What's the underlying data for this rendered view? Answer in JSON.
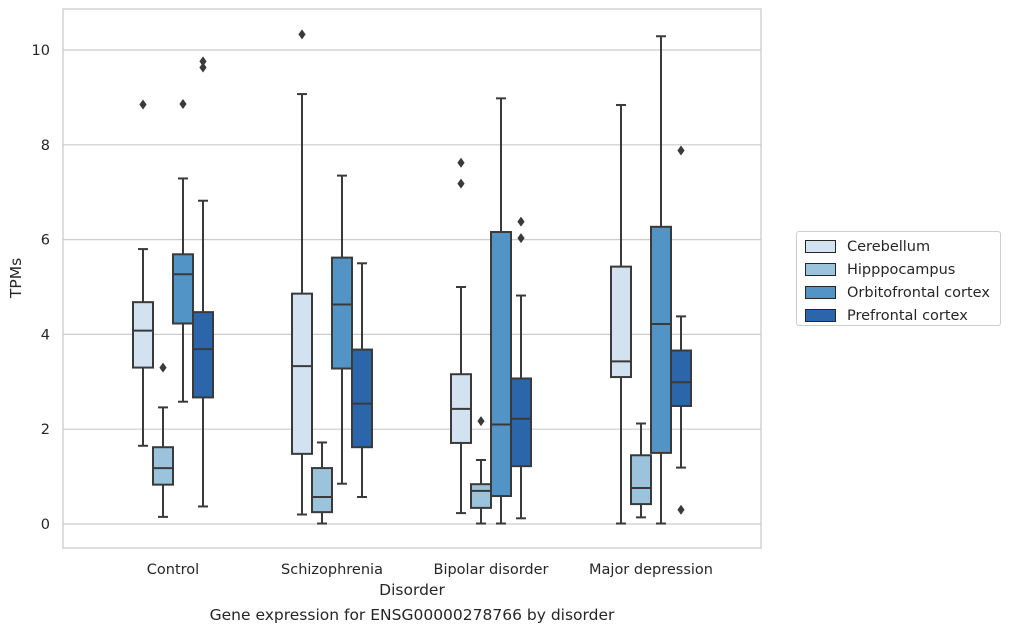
{
  "caption": "Gene expression for ENSG00000278766 by disorder",
  "chart_data": {
    "type": "box",
    "title": "",
    "xlabel": "Disorder",
    "ylabel": "TPMs",
    "ylim": [
      -0.5,
      10.8
    ],
    "yticks": [
      0,
      2,
      4,
      6,
      8,
      10
    ],
    "grid": "horizontal",
    "legend_position": "right",
    "categories": [
      "Control",
      "Schizophrenia",
      "Bipolar disorder",
      "Major depression"
    ],
    "series": [
      {
        "name": "Cerebellum",
        "color": "#d3e2f1",
        "boxes": [
          {
            "whisker_low": 1.65,
            "q1": 3.3,
            "median": 4.08,
            "q3": 4.68,
            "whisker_high": 5.8,
            "outliers": [
              8.85
            ]
          },
          {
            "whisker_low": 0.2,
            "q1": 1.48,
            "median": 3.33,
            "q3": 4.86,
            "whisker_high": 9.07,
            "outliers": [
              10.33
            ]
          },
          {
            "whisker_low": 0.23,
            "q1": 1.71,
            "median": 2.43,
            "q3": 3.16,
            "whisker_high": 5.0,
            "outliers": [
              7.18,
              7.62
            ]
          },
          {
            "whisker_low": 0.01,
            "q1": 3.1,
            "median": 3.43,
            "q3": 5.43,
            "whisker_high": 8.84,
            "outliers": []
          }
        ]
      },
      {
        "name": "Hipppocampus",
        "color": "#9cc3dc",
        "boxes": [
          {
            "whisker_low": 0.15,
            "q1": 0.83,
            "median": 1.18,
            "q3": 1.62,
            "whisker_high": 2.46,
            "outliers": [
              3.3
            ]
          },
          {
            "whisker_low": 0.01,
            "q1": 0.25,
            "median": 0.57,
            "q3": 1.18,
            "whisker_high": 1.72,
            "outliers": []
          },
          {
            "whisker_low": 0.01,
            "q1": 0.34,
            "median": 0.7,
            "q3": 0.84,
            "whisker_high": 1.35,
            "outliers": [
              2.17
            ]
          },
          {
            "whisker_low": 0.14,
            "q1": 0.42,
            "median": 0.76,
            "q3": 1.45,
            "whisker_high": 2.12,
            "outliers": []
          }
        ]
      },
      {
        "name": "Orbitofrontal cortex",
        "color": "#5294c6",
        "boxes": [
          {
            "whisker_low": 2.58,
            "q1": 4.23,
            "median": 5.27,
            "q3": 5.69,
            "whisker_high": 7.29,
            "outliers": [
              8.86
            ]
          },
          {
            "whisker_low": 0.85,
            "q1": 3.28,
            "median": 4.63,
            "q3": 5.62,
            "whisker_high": 7.35,
            "outliers": []
          },
          {
            "whisker_low": 0.01,
            "q1": 0.59,
            "median": 2.1,
            "q3": 6.16,
            "whisker_high": 8.98,
            "outliers": []
          },
          {
            "whisker_low": 0.01,
            "q1": 1.5,
            "median": 4.22,
            "q3": 6.27,
            "whisker_high": 10.29,
            "outliers": []
          }
        ]
      },
      {
        "name": "Prefrontal cortex",
        "color": "#2a66a9",
        "boxes": [
          {
            "whisker_low": 0.37,
            "q1": 2.67,
            "median": 3.69,
            "q3": 4.47,
            "whisker_high": 6.82,
            "outliers": [
              9.63,
              9.76
            ]
          },
          {
            "whisker_low": 0.57,
            "q1": 1.62,
            "median": 2.54,
            "q3": 3.68,
            "whisker_high": 5.5,
            "outliers": []
          },
          {
            "whisker_low": 0.12,
            "q1": 1.22,
            "median": 2.22,
            "q3": 3.07,
            "whisker_high": 4.82,
            "outliers": [
              6.03,
              6.38
            ]
          },
          {
            "whisker_low": 1.19,
            "q1": 2.49,
            "median": 2.99,
            "q3": 3.66,
            "whisker_high": 4.38,
            "outliers": [
              0.3,
              7.88
            ]
          }
        ]
      }
    ]
  }
}
